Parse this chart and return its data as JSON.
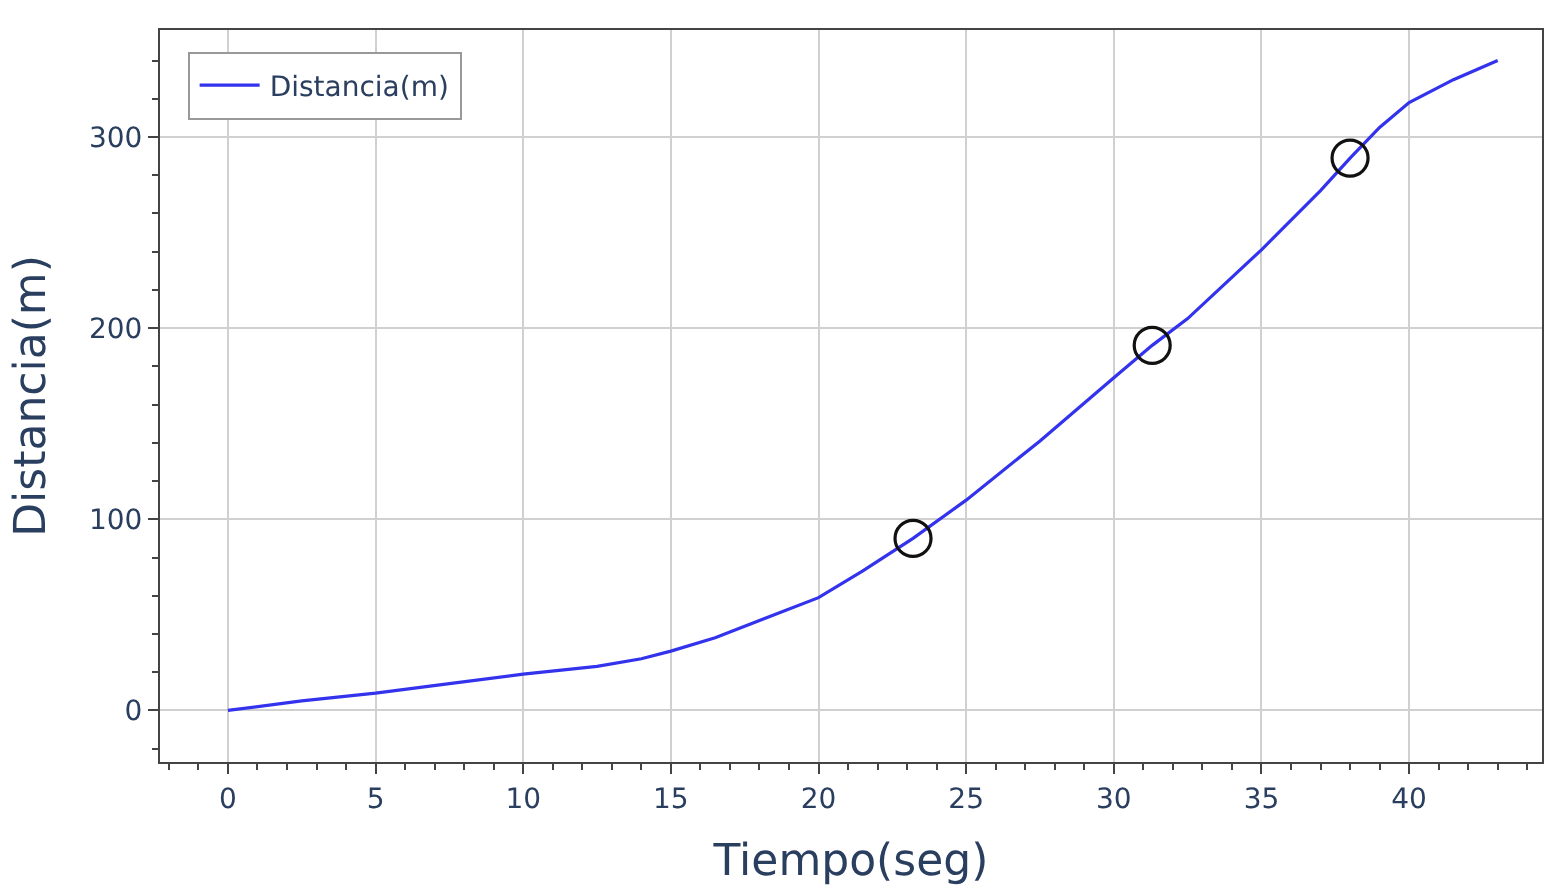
{
  "chart_data": {
    "type": "line",
    "xlabel": "Tiempo(seg)",
    "ylabel": "Distancia(m)",
    "series": [
      {
        "name": "Distancia(m)",
        "color": "#3333ee",
        "x": [
          0,
          2.5,
          5,
          7.5,
          10,
          12.5,
          14,
          15,
          16.5,
          18,
          20,
          21.5,
          23.2,
          25,
          27.5,
          30,
          31.3,
          32.5,
          35,
          37,
          38,
          39,
          40,
          41.5,
          43
        ],
        "values": [
          0,
          5,
          9,
          14,
          19,
          23,
          27,
          31,
          38,
          47,
          59,
          73,
          90,
          110,
          141,
          174,
          191,
          205,
          241,
          272,
          289,
          305,
          318,
          330,
          340
        ],
        "marker": "none"
      },
      {
        "type": "scatter",
        "color": "#111111",
        "x": [
          23.2,
          31.3,
          38
        ],
        "values": [
          90,
          191,
          289
        ],
        "marker": "circle"
      }
    ],
    "xlim": [
      -2.3,
      44.5
    ],
    "xticks": [
      0,
      5,
      10,
      15,
      20,
      25,
      30,
      35,
      40
    ],
    "ylim": [
      -27,
      356
    ],
    "yticks": [
      0,
      100,
      200,
      300
    ],
    "grid": true,
    "legend": "top left"
  }
}
